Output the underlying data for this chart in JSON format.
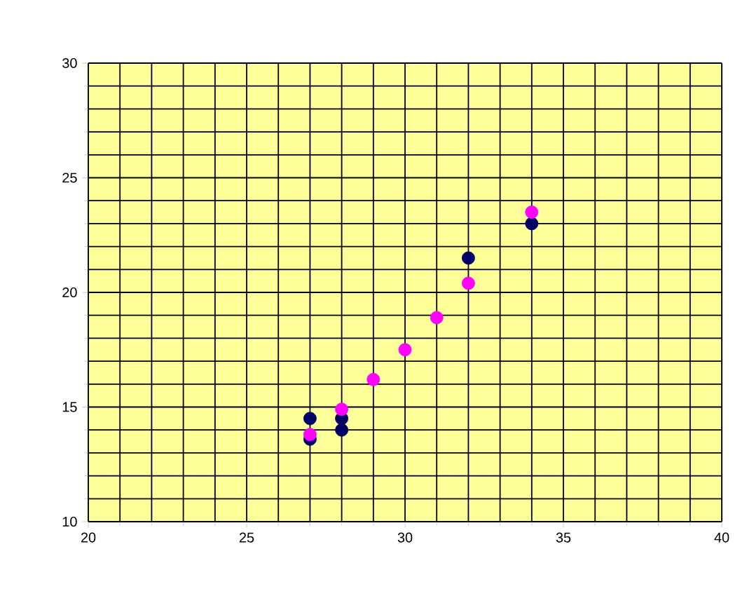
{
  "chart_data": {
    "type": "scatter",
    "grid": true,
    "xlim": [
      20,
      40
    ],
    "xticks": [
      20,
      25,
      30,
      35,
      40
    ],
    "ylim": [
      10,
      30
    ],
    "yticks": [
      10,
      15,
      20,
      25,
      30
    ],
    "series": [
      {
        "color": "#000066",
        "x": [
          27,
          27,
          28,
          28,
          32,
          34
        ],
        "values": [
          14.5,
          13.6,
          14.5,
          14.0,
          21.5,
          23.0
        ]
      },
      {
        "color": "#ff00ff",
        "x": [
          27,
          28,
          29,
          30,
          31,
          32,
          34
        ],
        "values": [
          13.8,
          14.9,
          16.2,
          17.5,
          18.9,
          20.4,
          23.5
        ]
      }
    ]
  }
}
